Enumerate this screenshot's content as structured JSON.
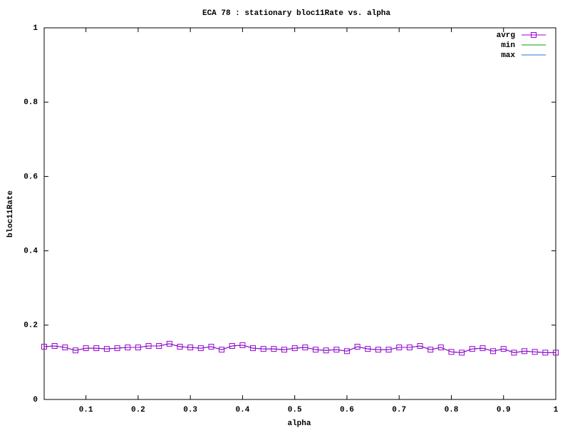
{
  "chart_data": {
    "type": "line",
    "title": "ECA 78 : stationary bloc11Rate vs. alpha",
    "x_label": "alpha",
    "y_label": "bloc11Rate",
    "x": [
      0.02,
      0.04,
      0.06,
      0.08,
      0.1,
      0.12,
      0.14,
      0.16,
      0.18,
      0.2,
      0.22,
      0.24,
      0.26,
      0.28,
      0.3,
      0.32,
      0.34,
      0.36,
      0.38,
      0.4,
      0.42,
      0.44,
      0.46,
      0.48,
      0.5,
      0.52,
      0.54,
      0.56,
      0.58,
      0.6,
      0.62,
      0.64,
      0.66,
      0.68,
      0.7,
      0.72,
      0.74,
      0.76,
      0.78,
      0.8,
      0.82,
      0.84,
      0.86,
      0.88,
      0.9,
      0.92,
      0.94,
      0.96,
      0.98,
      1.0
    ],
    "series": [
      {
        "name": "avrg",
        "color": "#9a00d8",
        "marker": "square",
        "values": [
          0.142,
          0.144,
          0.14,
          0.132,
          0.138,
          0.138,
          0.136,
          0.138,
          0.14,
          0.14,
          0.144,
          0.144,
          0.15,
          0.142,
          0.14,
          0.138,
          0.142,
          0.134,
          0.144,
          0.146,
          0.138,
          0.136,
          0.136,
          0.134,
          0.138,
          0.14,
          0.134,
          0.132,
          0.134,
          0.13,
          0.142,
          0.136,
          0.134,
          0.134,
          0.14,
          0.14,
          0.144,
          0.134,
          0.14,
          0.128,
          0.126,
          0.136,
          0.138,
          0.13,
          0.136,
          0.126,
          0.13,
          0.128,
          0.126,
          0.126
        ]
      },
      {
        "name": "min",
        "color": "#00a000",
        "values": [
          0.142,
          0.144,
          0.14,
          0.132,
          0.138,
          0.138,
          0.136,
          0.138,
          0.14,
          0.14,
          0.144,
          0.144,
          0.15,
          0.142,
          0.14,
          0.138,
          0.142,
          0.134,
          0.144,
          0.146,
          0.138,
          0.136,
          0.136,
          0.134,
          0.138,
          0.14,
          0.134,
          0.132,
          0.134,
          0.13,
          0.142,
          0.136,
          0.134,
          0.134,
          0.14,
          0.14,
          0.144,
          0.134,
          0.14,
          0.128,
          0.126,
          0.136,
          0.138,
          0.13,
          0.136,
          0.126,
          0.13,
          0.128,
          0.126,
          0.126
        ]
      },
      {
        "name": "max",
        "color": "#1f78d0",
        "values": [
          0.142,
          0.144,
          0.14,
          0.132,
          0.138,
          0.138,
          0.136,
          0.138,
          0.14,
          0.14,
          0.144,
          0.144,
          0.15,
          0.142,
          0.14,
          0.138,
          0.142,
          0.134,
          0.144,
          0.146,
          0.138,
          0.136,
          0.136,
          0.134,
          0.138,
          0.14,
          0.134,
          0.132,
          0.134,
          0.13,
          0.142,
          0.136,
          0.134,
          0.134,
          0.14,
          0.14,
          0.144,
          0.134,
          0.14,
          0.128,
          0.126,
          0.136,
          0.138,
          0.13,
          0.136,
          0.126,
          0.13,
          0.128,
          0.126,
          0.126
        ]
      }
    ],
    "xlim": [
      0.02,
      1
    ],
    "ylim": [
      0,
      1
    ],
    "xticks": [
      0.1,
      0.2,
      0.3,
      0.4,
      0.5,
      0.6,
      0.7,
      0.8,
      0.9,
      1
    ],
    "yticks": [
      0,
      0.2,
      0.4,
      0.6,
      0.8,
      1
    ],
    "grid": false,
    "legend": "top-right"
  }
}
